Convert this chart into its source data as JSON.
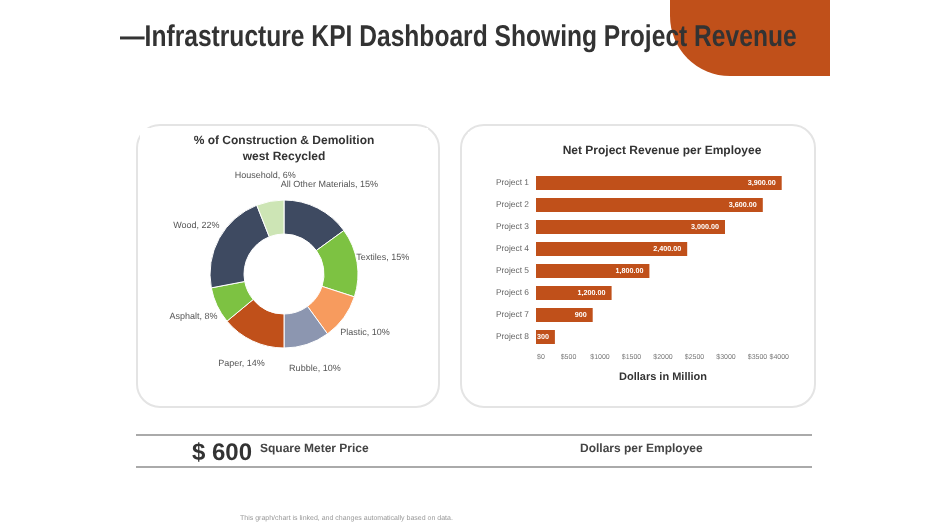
{
  "chart_data": [
    {
      "type": "other",
      "title": "—Infrastructure KPI Dashboard Showing Project Revenue"
    },
    {
      "type": "donut",
      "title": "% of Construction & Demolition west Recycled",
      "categories": [
        "All Other Materials",
        "Textiles",
        "Plastic",
        "Rubble",
        "Paper",
        "Asphalt",
        "Wood",
        "Household"
      ],
      "values": [
        15,
        15,
        10,
        10,
        14,
        8,
        22,
        6
      ],
      "value_labels": [
        "15%",
        "15%",
        "10%",
        "10%",
        "14%",
        "8%",
        "22%",
        "6%"
      ],
      "colors": [
        "#3e4a61",
        "#7dc242",
        "#f79b5e",
        "#8c96b0",
        "#c0501a",
        "#7dc242",
        "#3e4a61",
        "#cde5b5"
      ]
    },
    {
      "type": "bar",
      "orientation": "horizontal",
      "title": "Net Project Revenue per Employee",
      "xlabel": "Dollars in Million",
      "categories": [
        "Project 1",
        "Project 2",
        "Project 3",
        "Project 4",
        "Project 5",
        "Project 6",
        "Project 7",
        "Project 8"
      ],
      "values": [
        3900,
        3600,
        3000,
        2400,
        1800,
        1200,
        900,
        300
      ],
      "value_labels": [
        "3,900.00",
        "3,600.00",
        "3,000.00",
        "2,400.00",
        "1,800.00",
        "1,200.00",
        "900",
        "300"
      ],
      "color": "#c0501a",
      "xlim": [
        0,
        4000
      ],
      "xticks": [
        {
          "value": 0,
          "label": "$0"
        },
        {
          "value": 500,
          "label": "$500"
        },
        {
          "value": 1000,
          "label": "$1000"
        },
        {
          "value": 1500,
          "label": "$1500"
        },
        {
          "value": 2000,
          "label": "$2000"
        },
        {
          "value": 2500,
          "label": "$2500"
        },
        {
          "value": 3000,
          "label": "$3000"
        },
        {
          "value": 3500,
          "label": "$3500"
        },
        {
          "value": 4000,
          "label": "$4000"
        }
      ]
    },
    {
      "type": "other",
      "annotations": [
        "$ 600",
        "Square Meter Price",
        "Dollars per Employee",
        "This graph/chart is linked, and changes automatically based on data."
      ]
    }
  ]
}
